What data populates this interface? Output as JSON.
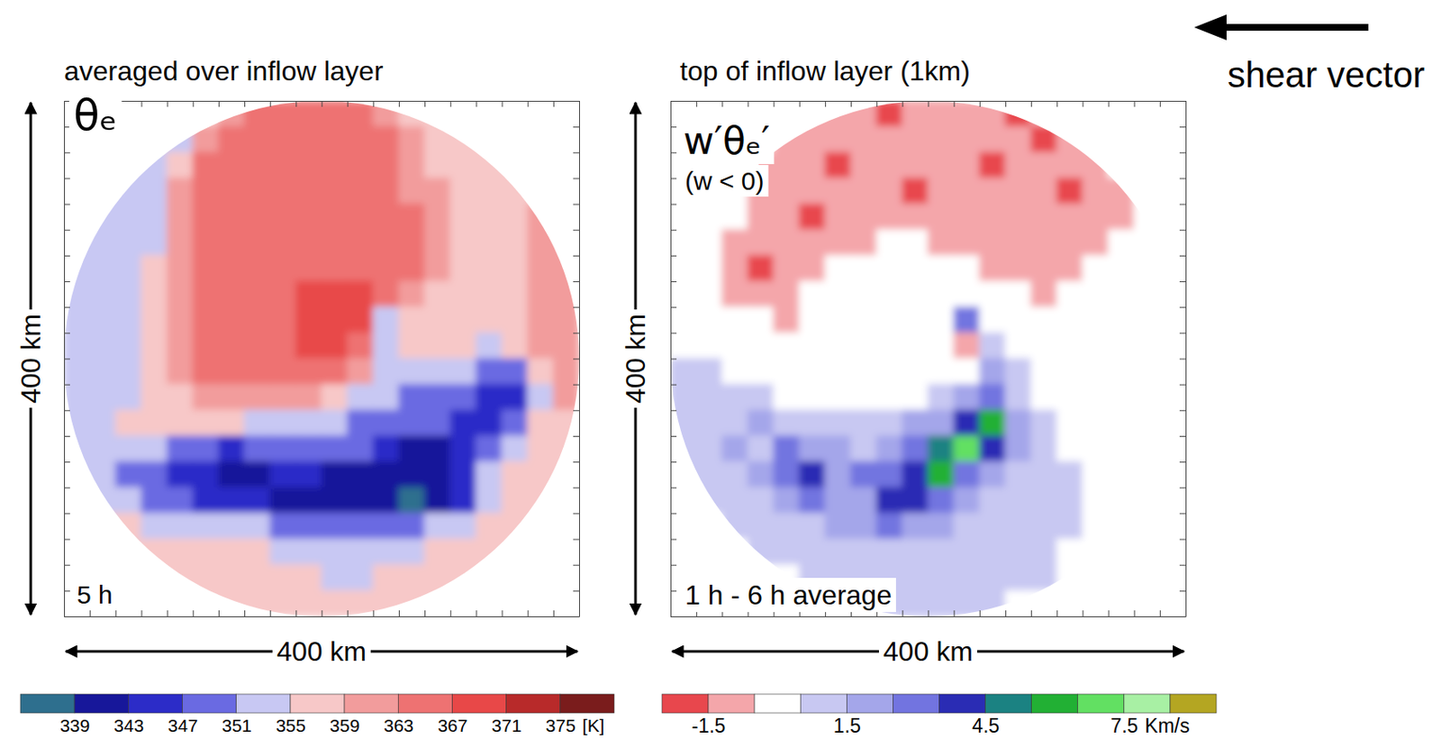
{
  "chart_data": [
    {
      "type": "heatmap",
      "title": "averaged over inflow layer",
      "annotations": [
        "θₑ",
        "5 h"
      ],
      "xlabel": "400 km",
      "ylabel": "400 km",
      "xlim": [
        -200,
        200
      ],
      "ylim": [
        -200,
        200
      ],
      "xticks": [
        -200,
        -180,
        -160,
        -140,
        -120,
        -100,
        -80,
        -60,
        -40,
        -20,
        0,
        20,
        40,
        60,
        80,
        100,
        120,
        140,
        160,
        180,
        200
      ],
      "yticks": [
        -200,
        -180,
        -160,
        -140,
        -120,
        -100,
        -80,
        -60,
        -40,
        -20,
        0,
        20,
        40,
        60,
        80,
        100,
        120,
        140,
        160,
        180,
        200
      ],
      "tick_labels": false,
      "x": [
        -190,
        -170,
        -150,
        -130,
        -110,
        -90,
        -70,
        -50,
        -30,
        -10,
        10,
        30,
        50,
        70,
        90,
        110,
        130,
        150,
        170,
        190
      ],
      "y": [
        190,
        170,
        150,
        130,
        110,
        90,
        70,
        50,
        30,
        10,
        -10,
        -30,
        -50,
        -70,
        -90,
        -110,
        -130,
        -150,
        -170,
        -190
      ],
      "values": [
        [
          null,
          null,
          null,
          null,
          null,
          357,
          361,
          365,
          365,
          365,
          365,
          365,
          361,
          357,
          357,
          null,
          null,
          null,
          null,
          null
        ],
        [
          null,
          null,
          null,
          353,
          353,
          361,
          365,
          365,
          365,
          365,
          365,
          365,
          365,
          361,
          357,
          357,
          357,
          null,
          null,
          null
        ],
        [
          null,
          null,
          353,
          353,
          357,
          365,
          365,
          365,
          365,
          365,
          365,
          365,
          365,
          361,
          357,
          357,
          357,
          357,
          null,
          null
        ],
        [
          null,
          353,
          353,
          353,
          361,
          365,
          365,
          365,
          365,
          365,
          365,
          365,
          365,
          361,
          361,
          357,
          357,
          357,
          357,
          null
        ],
        [
          null,
          353,
          353,
          353,
          361,
          365,
          365,
          365,
          365,
          365,
          365,
          365,
          365,
          365,
          361,
          357,
          357,
          357,
          361,
          null
        ],
        [
          353,
          353,
          353,
          353,
          361,
          365,
          365,
          365,
          365,
          365,
          365,
          365,
          365,
          365,
          361,
          357,
          357,
          357,
          361,
          361
        ],
        [
          353,
          353,
          353,
          357,
          361,
          365,
          365,
          365,
          365,
          365,
          365,
          365,
          365,
          365,
          361,
          357,
          357,
          357,
          361,
          361
        ],
        [
          353,
          353,
          353,
          357,
          361,
          365,
          365,
          365,
          365,
          369,
          369,
          369,
          365,
          361,
          357,
          357,
          357,
          357,
          361,
          361
        ],
        [
          353,
          353,
          353,
          357,
          361,
          365,
          365,
          365,
          365,
          369,
          369,
          369,
          353,
          357,
          357,
          357,
          357,
          357,
          361,
          361
        ],
        [
          353,
          353,
          353,
          357,
          361,
          365,
          365,
          365,
          365,
          369,
          369,
          365,
          353,
          357,
          357,
          357,
          353,
          357,
          361,
          361
        ],
        [
          353,
          353,
          353,
          357,
          361,
          365,
          365,
          365,
          365,
          365,
          365,
          361,
          353,
          353,
          353,
          353,
          349,
          349,
          357,
          361
        ],
        [
          353,
          353,
          353,
          357,
          357,
          361,
          361,
          361,
          361,
          361,
          357,
          353,
          353,
          349,
          349,
          349,
          345,
          345,
          353,
          361
        ],
        [
          353,
          353,
          357,
          357,
          357,
          357,
          357,
          353,
          353,
          353,
          353,
          349,
          349,
          349,
          349,
          345,
          345,
          349,
          357,
          357
        ],
        [
          353,
          353,
          353,
          353,
          349,
          349,
          345,
          349,
          349,
          349,
          349,
          349,
          345,
          341,
          341,
          345,
          349,
          353,
          357,
          357
        ],
        [
          353,
          353,
          349,
          349,
          345,
          345,
          341,
          341,
          345,
          345,
          341,
          341,
          341,
          341,
          341,
          345,
          353,
          357,
          357,
          357
        ],
        [
          null,
          353,
          353,
          349,
          349,
          345,
          345,
          345,
          341,
          341,
          341,
          341,
          341,
          337,
          341,
          345,
          353,
          357,
          357,
          null
        ],
        [
          null,
          357,
          357,
          353,
          353,
          353,
          353,
          353,
          349,
          349,
          349,
          349,
          349,
          349,
          353,
          353,
          357,
          357,
          357,
          null
        ],
        [
          null,
          null,
          357,
          357,
          357,
          357,
          357,
          357,
          353,
          353,
          353,
          353,
          353,
          353,
          357,
          357,
          357,
          357,
          null,
          null
        ],
        [
          null,
          null,
          null,
          357,
          357,
          357,
          357,
          357,
          357,
          357,
          353,
          353,
          357,
          357,
          357,
          357,
          357,
          null,
          null,
          null
        ],
        [
          null,
          null,
          null,
          null,
          null,
          357,
          357,
          357,
          357,
          357,
          357,
          357,
          357,
          357,
          357,
          null,
          null,
          null,
          null,
          null
        ]
      ],
      "colorbar": {
        "range": [
          339,
          375
        ],
        "levels": [
          339,
          343,
          347,
          351,
          355,
          359,
          363,
          367,
          371,
          375
        ],
        "ticks": [
          339,
          343,
          347,
          351,
          355,
          359,
          363,
          367,
          371,
          375
        ],
        "colors": [
          "#2e6f8e",
          "#17179a",
          "#2c2cc8",
          "#6a6ae2",
          "#c8c8f3",
          "#f7c8c8",
          "#f29c9c",
          "#ee7272",
          "#e84848",
          "#b82a2a",
          "#7a1c1c"
        ],
        "units": "[K]"
      }
    },
    {
      "type": "heatmap",
      "title": "top of inflow layer (1km)",
      "annotations": [
        "w′θₑ′",
        "(w < 0)",
        "1 h - 6 h average",
        "shear vector"
      ],
      "xlabel": "400 km",
      "ylabel": "400 km",
      "xlim": [
        -200,
        200
      ],
      "ylim": [
        -200,
        200
      ],
      "xticks": [
        -200,
        -180,
        -160,
        -140,
        -120,
        -100,
        -80,
        -60,
        -40,
        -20,
        0,
        20,
        40,
        60,
        80,
        100,
        120,
        140,
        160,
        180,
        200
      ],
      "yticks": [
        -200,
        -180,
        -160,
        -140,
        -120,
        -100,
        -80,
        -60,
        -40,
        -20,
        0,
        20,
        40,
        60,
        80,
        100,
        120,
        140,
        160,
        180,
        200
      ],
      "tick_labels": false,
      "x": [
        -190,
        -170,
        -150,
        -130,
        -110,
        -90,
        -70,
        -50,
        -30,
        -10,
        10,
        30,
        50,
        70,
        90,
        110,
        130,
        150,
        170,
        190
      ],
      "y": [
        190,
        170,
        150,
        130,
        110,
        90,
        70,
        50,
        30,
        10,
        -10,
        -30,
        -50,
        -70,
        -90,
        -110,
        -130,
        -150,
        -170,
        -190
      ],
      "values": [
        [
          null,
          null,
          null,
          null,
          null,
          -1,
          -1,
          -1,
          -2,
          -1,
          -1,
          -1,
          -1,
          -2,
          -1,
          null,
          null,
          null,
          null,
          null
        ],
        [
          null,
          null,
          null,
          0,
          -1,
          -1,
          -1,
          -1,
          -1,
          -1,
          -1,
          -1,
          -1,
          -1,
          -2,
          -1,
          -1,
          null,
          null,
          null
        ],
        [
          null,
          null,
          0,
          -1,
          -1,
          -1,
          -2,
          -1,
          -1,
          -1,
          -1,
          -1,
          -2,
          -1,
          -1,
          -1,
          -1,
          0,
          null,
          null
        ],
        [
          null,
          0,
          0,
          -1,
          -1,
          -1,
          -1,
          -1,
          -1,
          -2,
          -1,
          -1,
          -1,
          -1,
          -1,
          -2,
          -1,
          -1,
          0,
          null
        ],
        [
          null,
          0,
          0,
          -1,
          -1,
          -2,
          -1,
          -1,
          -1,
          -1,
          -1,
          -1,
          -1,
          -1,
          -1,
          -1,
          -1,
          -1,
          0,
          null
        ],
        [
          0,
          0,
          -1,
          -1,
          -1,
          -1,
          -1,
          -1,
          0,
          0,
          -1,
          -1,
          -1,
          -1,
          -1,
          -1,
          -1,
          0,
          0,
          0
        ],
        [
          0,
          0,
          -1,
          -2,
          -1,
          -1,
          0,
          0,
          0,
          0,
          0,
          0,
          -1,
          -1,
          -1,
          -1,
          0,
          0,
          0,
          0
        ],
        [
          0,
          0,
          -1,
          -1,
          -1,
          0,
          0,
          0,
          0,
          0,
          0,
          0,
          0,
          0,
          -1,
          0,
          0,
          0,
          0,
          0
        ],
        [
          0,
          0,
          0,
          0,
          -1,
          0,
          0,
          0,
          0,
          0,
          0,
          3,
          0,
          0,
          0,
          0,
          0,
          0,
          0,
          0
        ],
        [
          0,
          0,
          0,
          0,
          0,
          0,
          0,
          0,
          0,
          0,
          0,
          -1,
          1,
          0,
          0,
          0,
          0,
          0,
          0,
          0
        ],
        [
          1,
          1,
          0,
          0,
          0,
          0,
          0,
          0,
          0,
          0,
          0,
          0,
          2,
          1,
          0,
          0,
          0,
          0,
          0,
          0
        ],
        [
          1,
          1,
          1,
          1,
          0,
          0,
          0,
          0,
          0,
          0,
          1,
          2,
          3,
          1,
          0,
          0,
          0,
          0,
          0,
          0
        ],
        [
          1,
          1,
          1,
          2,
          1,
          1,
          1,
          1,
          1,
          2,
          2,
          4,
          6,
          2,
          1,
          0,
          0,
          0,
          0,
          0
        ],
        [
          1,
          1,
          2,
          1,
          3,
          2,
          2,
          1,
          2,
          3,
          5,
          7,
          4,
          2,
          1,
          0,
          0,
          0,
          0,
          0
        ],
        [
          1,
          1,
          1,
          2,
          3,
          4,
          2,
          3,
          3,
          4,
          6,
          3,
          2,
          1,
          1,
          1,
          0,
          0,
          0,
          0
        ],
        [
          null,
          1,
          1,
          1,
          2,
          3,
          2,
          2,
          4,
          4,
          3,
          2,
          1,
          1,
          1,
          1,
          0,
          0,
          0,
          null
        ],
        [
          null,
          0,
          1,
          1,
          1,
          1,
          2,
          2,
          3,
          2,
          2,
          1,
          1,
          1,
          1,
          1,
          0,
          0,
          0,
          null
        ],
        [
          null,
          null,
          0,
          1,
          1,
          1,
          1,
          1,
          1,
          1,
          1,
          1,
          1,
          1,
          1,
          0,
          0,
          0,
          null,
          null
        ],
        [
          null,
          null,
          null,
          0,
          0,
          1,
          1,
          1,
          1,
          1,
          1,
          1,
          1,
          1,
          1,
          0,
          0,
          null,
          null,
          null
        ],
        [
          null,
          null,
          null,
          null,
          null,
          0,
          0,
          1,
          1,
          1,
          1,
          1,
          1,
          0,
          0,
          null,
          null,
          null,
          null,
          null
        ]
      ],
      "colorbar": {
        "range": [
          -1.5,
          8.5
        ],
        "levels": [
          -1.5,
          -0.5,
          0.5,
          1.5,
          2.5,
          3.5,
          4.5,
          5.5,
          6.5,
          7.5,
          8.5
        ],
        "ticks": [
          -1.5,
          1.5,
          4.5,
          7.5
        ],
        "colors": [
          "#e8474d",
          "#f4a6aa",
          "#ffffff",
          "#c8c8f2",
          "#a4a6ea",
          "#7274e0",
          "#2a2cb4",
          "#1b8282",
          "#22b034",
          "#62e062",
          "#a8f0a4",
          "#b4a622"
        ],
        "units": "Km/s"
      }
    }
  ]
}
